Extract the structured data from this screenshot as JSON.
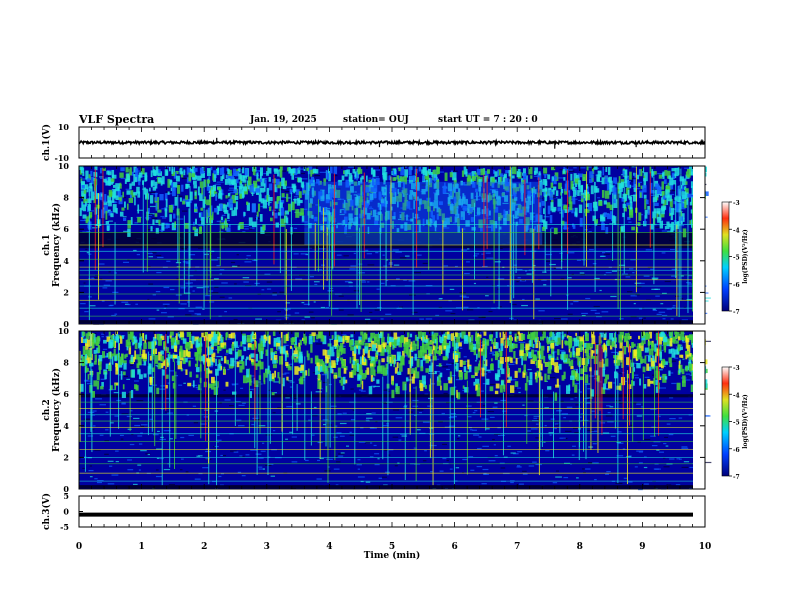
{
  "header": {
    "title": "VLF Spectra",
    "date": "Jan. 19, 2025",
    "station": "station= OUJ",
    "start_ut": "start  UT =   7 : 20 : 0"
  },
  "chart_data": [
    {
      "type": "line",
      "panel": "ch1-waveform",
      "ylabel": "ch.1(V)",
      "ylim": [
        -10,
        10
      ],
      "yticks": [
        "10",
        "-10"
      ],
      "xlim": [
        0,
        10
      ],
      "baseline": 0,
      "amplitude_typical": 1.5,
      "spikes": [
        {
          "t": 2.2,
          "v": 3
        },
        {
          "t": 4.8,
          "v": -3
        },
        {
          "t": 7.6,
          "v": -4
        },
        {
          "t": 8.9,
          "v": -3
        }
      ],
      "color": "#000000"
    },
    {
      "type": "heatmap",
      "panel": "ch1-spectrogram",
      "ylabel": "ch.1\nFrequency (kHz)",
      "ylim": [
        0,
        10
      ],
      "yticks": [
        "0",
        "2",
        "4",
        "6",
        "8",
        "10"
      ],
      "xlim": [
        0,
        10
      ],
      "colorbar": {
        "label": "log(PSD)(V²/Hz)",
        "range": [
          -7,
          -3
        ],
        "ticks": [
          "-3",
          "-4",
          "-5",
          "-6",
          "-7"
        ]
      },
      "noise_band_kHz": [
        4.8,
        5.8
      ],
      "upper_band_kHz": [
        6,
        10
      ]
    },
    {
      "type": "heatmap",
      "panel": "ch2-spectrogram",
      "ylabel": "ch.2\nFrequency (kHz)",
      "ylim": [
        0,
        10
      ],
      "yticks": [
        "0",
        "2",
        "4",
        "6",
        "8",
        "10"
      ],
      "xlim": [
        0,
        10
      ],
      "colorbar": {
        "label": "log(PSD)(V²/Hz)",
        "range": [
          -7,
          -3
        ],
        "ticks": [
          "-3",
          "-4",
          "-5",
          "-6",
          "-7"
        ]
      },
      "noise_band_kHz": [
        5.8,
        6.0
      ],
      "upper_band_kHz": [
        6,
        10
      ]
    },
    {
      "type": "line",
      "panel": "ch3-waveform",
      "ylabel": "ch.3(V)",
      "ylim": [
        -5,
        5
      ],
      "yticks": [
        "5",
        "0",
        "-5"
      ],
      "xlim": [
        0,
        10
      ],
      "baseline": -1,
      "color": "#000000"
    }
  ],
  "x_axis": {
    "label": "Time  (min)",
    "ticks": [
      "0",
      "1",
      "2",
      "3",
      "4",
      "5",
      "6",
      "7",
      "8",
      "9",
      "10"
    ]
  },
  "colors": {
    "dark": "#000033",
    "low": "#0000a0",
    "mid": "#1060ff",
    "cyan": "#20e0e0",
    "green": "#40d040",
    "yellow": "#f0f020",
    "red": "#ff2020"
  }
}
